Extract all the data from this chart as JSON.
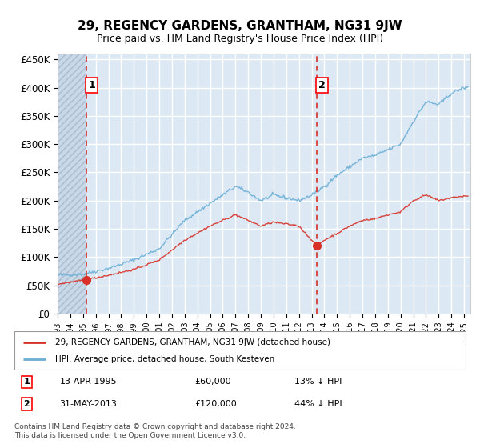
{
  "title": "29, REGENCY GARDENS, GRANTHAM, NG31 9JW",
  "subtitle": "Price paid vs. HM Land Registry's House Price Index (HPI)",
  "legend_line1": "29, REGENCY GARDENS, GRANTHAM, NG31 9JW (detached house)",
  "legend_line2": "HPI: Average price, detached house, South Kesteven",
  "annotation1_date": "13-APR-1995",
  "annotation1_price": "£60,000",
  "annotation1_hpi": "13% ↓ HPI",
  "annotation2_date": "31-MAY-2013",
  "annotation2_price": "£120,000",
  "annotation2_hpi": "44% ↓ HPI",
  "sale1_x": 1995.28,
  "sale1_y": 60000,
  "sale2_x": 2013.42,
  "sale2_y": 120000,
  "hpi_color": "#6baed6",
  "price_color": "#d73027",
  "vline_color": "#d73027",
  "bg_plot": "#dce9f5",
  "bg_hatch": "#c8d8e8",
  "bg_outer": "#ffffff",
  "ylim_min": 0,
  "ylim_max": 460000,
  "xlim_min": 1993,
  "xlim_max": 2025.5,
  "footer": "Contains HM Land Registry data © Crown copyright and database right 2024.\nThis data is licensed under the Open Government Licence v3.0.",
  "yticks": [
    0,
    50000,
    100000,
    150000,
    200000,
    250000,
    300000,
    350000,
    400000,
    450000
  ],
  "ytick_labels": [
    "£0",
    "£50K",
    "£100K",
    "£150K",
    "£200K",
    "£250K",
    "£300K",
    "£350K",
    "£400K",
    "£450K"
  ],
  "xticks": [
    1993,
    1994,
    1995,
    1996,
    1997,
    1998,
    1999,
    2000,
    2001,
    2002,
    2003,
    2004,
    2005,
    2006,
    2007,
    2008,
    2009,
    2010,
    2011,
    2012,
    2013,
    2014,
    2015,
    2016,
    2017,
    2018,
    2019,
    2020,
    2021,
    2022,
    2023,
    2024,
    2025
  ]
}
